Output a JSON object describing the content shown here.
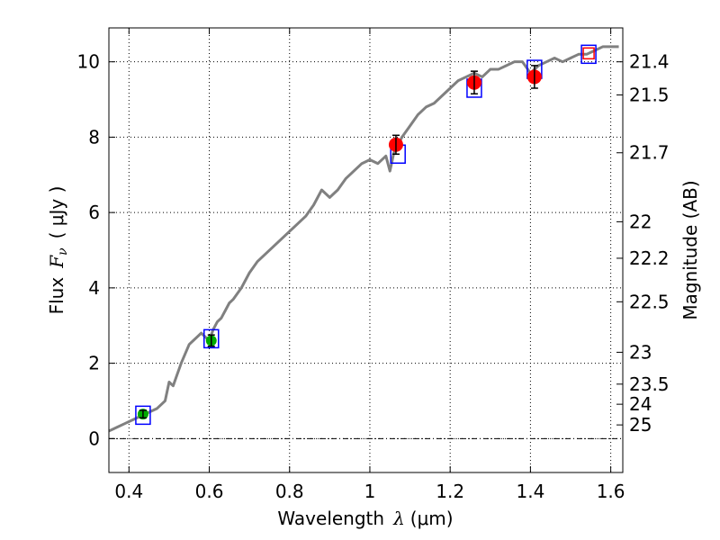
{
  "chart_data": {
    "type": "scatter",
    "xlabel": {
      "text": "Wavelength",
      "symbol": "λ",
      "unit": "(μm)"
    },
    "ylabel": {
      "text": "Flux",
      "symbol": "F",
      "subscript": "ν",
      "unit": "( μJy )"
    },
    "y2label": "Magnitude (AB)",
    "xlim": [
      0.35,
      1.63
    ],
    "ylim": [
      -0.9,
      10.9
    ],
    "grid": true,
    "x_ticks": [
      0.4,
      0.6,
      0.8,
      1.0,
      1.2,
      1.4,
      1.6
    ],
    "x_tick_labels": [
      "0.4",
      "0.6",
      "0.8",
      "1",
      "1.2",
      "1.4",
      "1.6"
    ],
    "y_ticks": [
      0,
      2,
      4,
      6,
      8,
      10
    ],
    "y_tick_labels": [
      "0",
      "2",
      "4",
      "6",
      "8",
      "10"
    ],
    "magnitude_ticks": [
      "21.4",
      "21.5",
      "21.7",
      "22",
      "22.2",
      "22.5",
      "23",
      "23.5",
      "24",
      "25"
    ],
    "model_spectrum": {
      "color": "#808080",
      "x": [
        0.35,
        0.37,
        0.39,
        0.41,
        0.43,
        0.45,
        0.47,
        0.49,
        0.5,
        0.51,
        0.52,
        0.53,
        0.55,
        0.56,
        0.57,
        0.58,
        0.59,
        0.6,
        0.61,
        0.62,
        0.63,
        0.64,
        0.65,
        0.66,
        0.68,
        0.7,
        0.72,
        0.74,
        0.76,
        0.78,
        0.8,
        0.82,
        0.84,
        0.86,
        0.88,
        0.9,
        0.92,
        0.94,
        0.96,
        0.98,
        1.0,
        1.02,
        1.04,
        1.05,
        1.06,
        1.08,
        1.1,
        1.12,
        1.14,
        1.16,
        1.18,
        1.2,
        1.22,
        1.24,
        1.26,
        1.28,
        1.3,
        1.32,
        1.34,
        1.36,
        1.38,
        1.4,
        1.42,
        1.44,
        1.46,
        1.48,
        1.5,
        1.52,
        1.54,
        1.56,
        1.58,
        1.6,
        1.62
      ],
      "y": [
        0.2,
        0.3,
        0.4,
        0.5,
        0.6,
        0.7,
        0.8,
        1.0,
        1.5,
        1.4,
        1.7,
        2.0,
        2.5,
        2.6,
        2.7,
        2.8,
        2.7,
        2.6,
        2.9,
        3.1,
        3.2,
        3.4,
        3.6,
        3.7,
        4.0,
        4.4,
        4.7,
        4.9,
        5.1,
        5.3,
        5.5,
        5.7,
        5.9,
        6.2,
        6.6,
        6.4,
        6.6,
        6.9,
        7.1,
        7.3,
        7.4,
        7.3,
        7.5,
        7.1,
        7.6,
        8.0,
        8.3,
        8.6,
        8.8,
        8.9,
        9.1,
        9.3,
        9.5,
        9.6,
        9.7,
        9.6,
        9.8,
        9.8,
        9.9,
        10.0,
        10.0,
        9.7,
        9.9,
        10.0,
        10.1,
        10.0,
        10.1,
        10.2,
        10.2,
        10.3,
        10.4,
        10.4,
        10.4
      ]
    },
    "model_photometry": {
      "color": "#0000ff",
      "x": [
        0.435,
        0.605,
        1.07,
        1.26,
        1.41,
        1.545
      ],
      "y": [
        0.62,
        2.65,
        7.55,
        9.3,
        9.8,
        10.2
      ]
    },
    "red_model_box": {
      "color": "#ff0000",
      "x": 1.545,
      "y": 10.2
    },
    "observed_optical": {
      "color": "#00aa00",
      "x": [
        0.435,
        0.605
      ],
      "y": [
        0.65,
        2.6
      ],
      "yerr": [
        0.1,
        0.15
      ]
    },
    "observed_nir": {
      "color": "#ff0000",
      "x": [
        1.065,
        1.26,
        1.41
      ],
      "y": [
        7.8,
        9.45,
        9.6
      ],
      "yerr": [
        0.25,
        0.3,
        0.3
      ]
    }
  }
}
